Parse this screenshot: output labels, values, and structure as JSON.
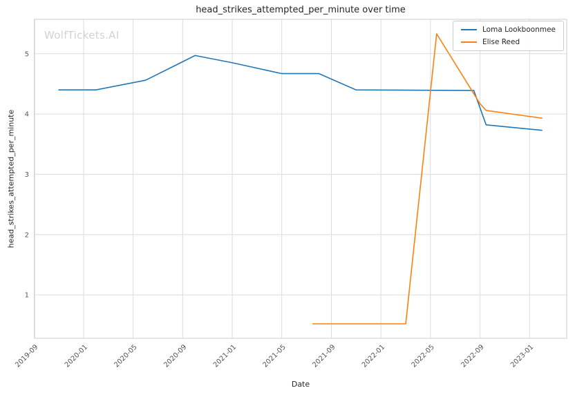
{
  "chart_data": {
    "type": "line",
    "title": "head_strikes_attempted_per_minute over time",
    "xlabel": "Date",
    "ylabel": "head_strikes_attempted_per_minute",
    "watermark": "WolfTickets.AI",
    "grid": true,
    "legend_position": "upper right",
    "grid_color": "#dcdcdc",
    "spine_color": "#cccccc",
    "xlim": [
      2019.67,
      2023.25
    ],
    "ylim": [
      0.28,
      5.57
    ],
    "x_tick_values": [
      2019.667,
      2020.0,
      2020.333,
      2020.667,
      2021.0,
      2021.333,
      2021.667,
      2022.0,
      2022.333,
      2022.667,
      2023.0
    ],
    "x_tick_labels": [
      "2019-09",
      "2020-01",
      "2020-05",
      "2020-09",
      "2021-01",
      "2021-05",
      "2021-09",
      "2022-01",
      "2022-05",
      "2022-09",
      "2023-01"
    ],
    "y_ticks": [
      1,
      2,
      3,
      4,
      5
    ],
    "series": [
      {
        "name": "Loma Lookboonmee",
        "color": "#1f77b4",
        "points": [
          [
            2019.833,
            4.4
          ],
          [
            2020.083,
            4.4
          ],
          [
            2020.417,
            4.56
          ],
          [
            2020.75,
            4.97
          ],
          [
            2021.0,
            4.85
          ],
          [
            2021.333,
            4.67
          ],
          [
            2021.583,
            4.67
          ],
          [
            2021.833,
            4.4
          ],
          [
            2022.625,
            4.39
          ],
          [
            2022.708,
            3.82
          ],
          [
            2023.083,
            3.73
          ]
        ]
      },
      {
        "name": "Elise Reed",
        "color": "#ff7f0e",
        "points": [
          [
            2021.542,
            0.52
          ],
          [
            2022.167,
            0.52
          ],
          [
            2022.375,
            5.33
          ],
          [
            2022.667,
            4.17
          ],
          [
            2022.708,
            4.06
          ],
          [
            2023.083,
            3.93
          ]
        ]
      }
    ]
  }
}
